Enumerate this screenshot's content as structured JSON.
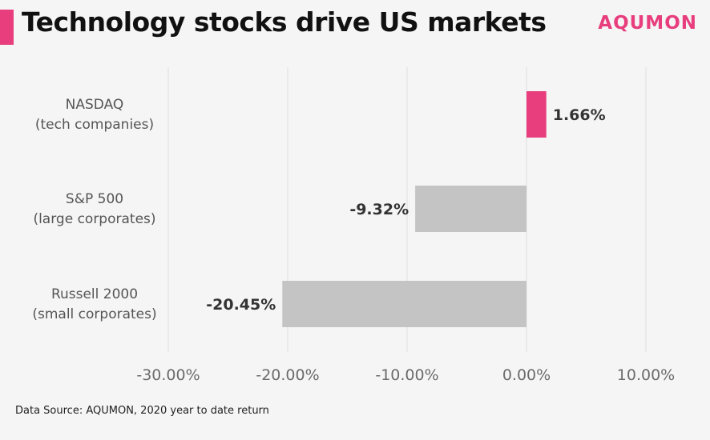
{
  "header": {
    "title": "Technology stocks drive US markets",
    "logo_text": "AQUMON"
  },
  "footer": {
    "source": "Data Source: AQUMON, 2020 year to date return"
  },
  "colors": {
    "accent": "#e83e7e",
    "negative_bar": "#c4c4c4",
    "grid": "#dedede",
    "background": "#f5f5f5"
  },
  "chart_data": {
    "type": "bar",
    "orientation": "horizontal",
    "categories": [
      [
        "NASDAQ",
        "(tech companies)"
      ],
      [
        "S&P 500",
        "(large corporates)"
      ],
      [
        "Russell 2000",
        "(small corporates)"
      ]
    ],
    "values": [
      1.66,
      -9.32,
      -20.45
    ],
    "value_labels": [
      "1.66%",
      "-9.32%",
      "-20.45%"
    ],
    "xlim": [
      -30,
      10
    ],
    "xticks": [
      -30,
      -20,
      -10,
      0,
      10
    ],
    "xtick_labels": [
      "-30.00%",
      "-20.00%",
      "-10.00%",
      "0.00%",
      "10.00%"
    ],
    "grid": true,
    "legend": "none"
  }
}
